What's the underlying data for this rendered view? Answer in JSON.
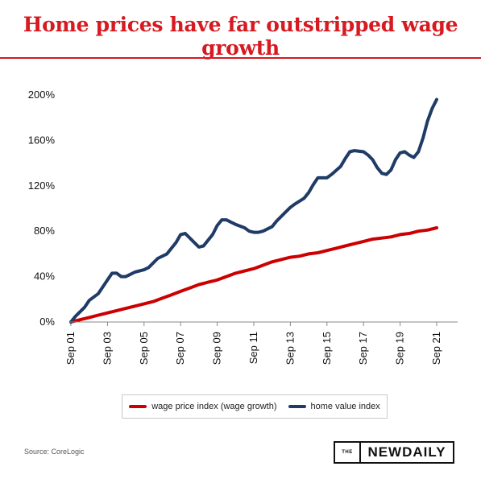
{
  "title": "Home prices have far outstripped wage growth",
  "source": "Source: CoreLogic",
  "logo": {
    "the": "THE",
    "name": "NEWDAILY"
  },
  "colors": {
    "accent": "#d71920",
    "wage": "#cc0000",
    "home": "#1f3b66"
  },
  "chart_data": {
    "type": "line",
    "title": "Home prices have far outstripped wage growth",
    "xlabel": "",
    "ylabel": "",
    "x_range": [
      2001.75,
      2021.75
    ],
    "ylim": [
      0,
      200
    ],
    "y_ticks": [
      "0%",
      "40%",
      "80%",
      "120%",
      "160%",
      "200%"
    ],
    "y_tick_values": [
      0,
      40,
      80,
      120,
      160,
      200
    ],
    "x_tick_labels": [
      "Sep 01",
      "Sep 03",
      "Sep 05",
      "Sep 07",
      "Sep 09",
      "Sep 11",
      "Sep 13",
      "Sep 15",
      "Sep 17",
      "Sep 19",
      "Sep 21"
    ],
    "x_tick_values": [
      2001.75,
      2003.75,
      2005.75,
      2007.75,
      2009.75,
      2011.75,
      2013.75,
      2015.75,
      2017.75,
      2019.75,
      2021.75
    ],
    "grid": false,
    "legend_position": "bottom",
    "series": [
      {
        "name": "wage price index (wage growth)",
        "color": "#cc0000",
        "points": [
          [
            2001.75,
            0
          ],
          [
            2002.25,
            2
          ],
          [
            2002.75,
            4
          ],
          [
            2003.25,
            6
          ],
          [
            2003.75,
            8
          ],
          [
            2004.25,
            10
          ],
          [
            2004.75,
            12
          ],
          [
            2005.25,
            14
          ],
          [
            2005.75,
            16
          ],
          [
            2006.25,
            18
          ],
          [
            2006.75,
            21
          ],
          [
            2007.25,
            24
          ],
          [
            2007.75,
            27
          ],
          [
            2008.25,
            30
          ],
          [
            2008.75,
            33
          ],
          [
            2009.25,
            35
          ],
          [
            2009.75,
            37
          ],
          [
            2010.25,
            40
          ],
          [
            2010.75,
            43
          ],
          [
            2011.25,
            45
          ],
          [
            2011.75,
            47
          ],
          [
            2012.25,
            50
          ],
          [
            2012.75,
            53
          ],
          [
            2013.25,
            55
          ],
          [
            2013.75,
            57
          ],
          [
            2014.25,
            58
          ],
          [
            2014.75,
            60
          ],
          [
            2015.25,
            61
          ],
          [
            2015.75,
            63
          ],
          [
            2016.25,
            65
          ],
          [
            2016.75,
            67
          ],
          [
            2017.25,
            69
          ],
          [
            2017.75,
            71
          ],
          [
            2018.25,
            73
          ],
          [
            2018.75,
            74
          ],
          [
            2019.25,
            75
          ],
          [
            2019.75,
            77
          ],
          [
            2020.25,
            78
          ],
          [
            2020.75,
            80
          ],
          [
            2021.25,
            81
          ],
          [
            2021.75,
            83
          ]
        ]
      },
      {
        "name": "home value index",
        "color": "#1f3b66",
        "points": [
          [
            2001.75,
            0
          ],
          [
            2002.0,
            5
          ],
          [
            2002.5,
            13
          ],
          [
            2002.75,
            19
          ],
          [
            2003.25,
            25
          ],
          [
            2003.5,
            31
          ],
          [
            2003.75,
            37
          ],
          [
            2004.0,
            43
          ],
          [
            2004.25,
            43
          ],
          [
            2004.5,
            40
          ],
          [
            2004.75,
            40
          ],
          [
            2005.0,
            42
          ],
          [
            2005.25,
            44
          ],
          [
            2005.75,
            46
          ],
          [
            2006.0,
            48
          ],
          [
            2006.5,
            56
          ],
          [
            2007.0,
            60
          ],
          [
            2007.5,
            70
          ],
          [
            2007.75,
            77
          ],
          [
            2008.0,
            78
          ],
          [
            2008.5,
            70
          ],
          [
            2008.75,
            66
          ],
          [
            2009.0,
            67
          ],
          [
            2009.5,
            77
          ],
          [
            2009.75,
            85
          ],
          [
            2010.0,
            90
          ],
          [
            2010.25,
            90
          ],
          [
            2010.5,
            88
          ],
          [
            2010.75,
            86
          ],
          [
            2011.25,
            83
          ],
          [
            2011.5,
            80
          ],
          [
            2011.75,
            79
          ],
          [
            2012.0,
            79
          ],
          [
            2012.25,
            80
          ],
          [
            2012.75,
            84
          ],
          [
            2013.0,
            89
          ],
          [
            2013.5,
            97
          ],
          [
            2013.75,
            101
          ],
          [
            2014.0,
            104
          ],
          [
            2014.5,
            109
          ],
          [
            2014.75,
            114
          ],
          [
            2015.0,
            121
          ],
          [
            2015.25,
            127
          ],
          [
            2015.5,
            127
          ],
          [
            2015.75,
            127
          ],
          [
            2016.0,
            130
          ],
          [
            2016.5,
            137
          ],
          [
            2016.75,
            144
          ],
          [
            2017.0,
            150
          ],
          [
            2017.25,
            151
          ],
          [
            2017.75,
            150
          ],
          [
            2018.0,
            147
          ],
          [
            2018.25,
            143
          ],
          [
            2018.5,
            136
          ],
          [
            2018.75,
            131
          ],
          [
            2019.0,
            130
          ],
          [
            2019.25,
            134
          ],
          [
            2019.5,
            143
          ],
          [
            2019.75,
            149
          ],
          [
            2020.0,
            150
          ],
          [
            2020.25,
            147
          ],
          [
            2020.5,
            145
          ],
          [
            2020.75,
            150
          ],
          [
            2021.0,
            162
          ],
          [
            2021.25,
            177
          ],
          [
            2021.5,
            188
          ],
          [
            2021.75,
            196
          ]
        ]
      }
    ]
  }
}
